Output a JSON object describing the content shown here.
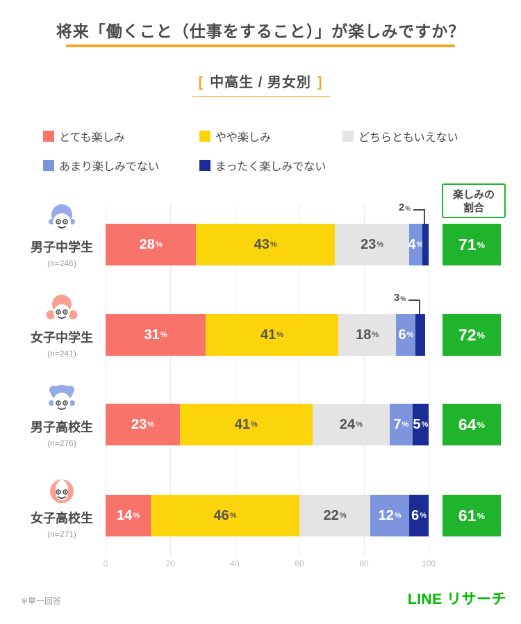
{
  "title": "将来「働くこと（仕事をすること）」が楽しみですか？",
  "subtitle": {
    "left_bracket": "[",
    "text": "中高生 / 男女別",
    "right_bracket": "]"
  },
  "legend": [
    {
      "label": "とても楽しみ",
      "color": "#F8746B"
    },
    {
      "label": "やや楽しみ",
      "color": "#FCD40C"
    },
    {
      "label": "どちらともいえない",
      "color": "#E4E4E4"
    },
    {
      "label": "あまり楽しみでない",
      "color": "#7D95DC"
    },
    {
      "label": "まったく楽しみでない",
      "color": "#1B2C96"
    }
  ],
  "rate_header": {
    "line1": "楽しみの",
    "line2": "割合"
  },
  "chart_data": {
    "type": "bar",
    "stacked": true,
    "orientation": "horizontal",
    "unit": "%",
    "x_axis": {
      "ticks": [
        0,
        20,
        40,
        60,
        80,
        100
      ],
      "range": [
        0,
        100
      ]
    },
    "series": [
      "とても楽しみ",
      "やや楽しみ",
      "どちらともいえない",
      "あまり楽しみでない",
      "まったく楽しみでない"
    ],
    "rows": [
      {
        "label": "男子中学生",
        "n_label": "(n=246)",
        "avatar": "boy-junior",
        "values": [
          28,
          43,
          23,
          4,
          2
        ],
        "callout_value_index": 4,
        "rate": 71
      },
      {
        "label": "女子中学生",
        "n_label": "(n=241)",
        "avatar": "girl-junior",
        "values": [
          31,
          41,
          18,
          6,
          3
        ],
        "callout_value_index": 4,
        "rate": 72
      },
      {
        "label": "男子高校生",
        "n_label": "(n=276)",
        "avatar": "boy-senior",
        "values": [
          23,
          41,
          24,
          7,
          5
        ],
        "callout_value_index": -1,
        "rate": 64
      },
      {
        "label": "女子高校生",
        "n_label": "(n=271)",
        "avatar": "girl-senior",
        "values": [
          14,
          46,
          22,
          12,
          6
        ],
        "callout_value_index": -1,
        "rate": 61
      }
    ]
  },
  "colors": {
    "title_text": "#4A4A4A",
    "accent_orange": "#F5A423",
    "subtitle_underline": "#F9C97C",
    "series": [
      "#F8746B",
      "#FCD40C",
      "#E4E4E4",
      "#7D95DC",
      "#1B2C96"
    ],
    "series_label_text": [
      "#FFFFFF",
      "#555555",
      "#555555",
      "#FFFFFF",
      "#FFFFFF"
    ],
    "rate_green": "#1FB42C",
    "logo_green": "#00B900",
    "grid": "#EAEAEA",
    "avatar_blue": "#96A9E8",
    "avatar_pink": "#F9A091"
  },
  "footnote": "※単一回答",
  "logo": "LINE リサーチ"
}
